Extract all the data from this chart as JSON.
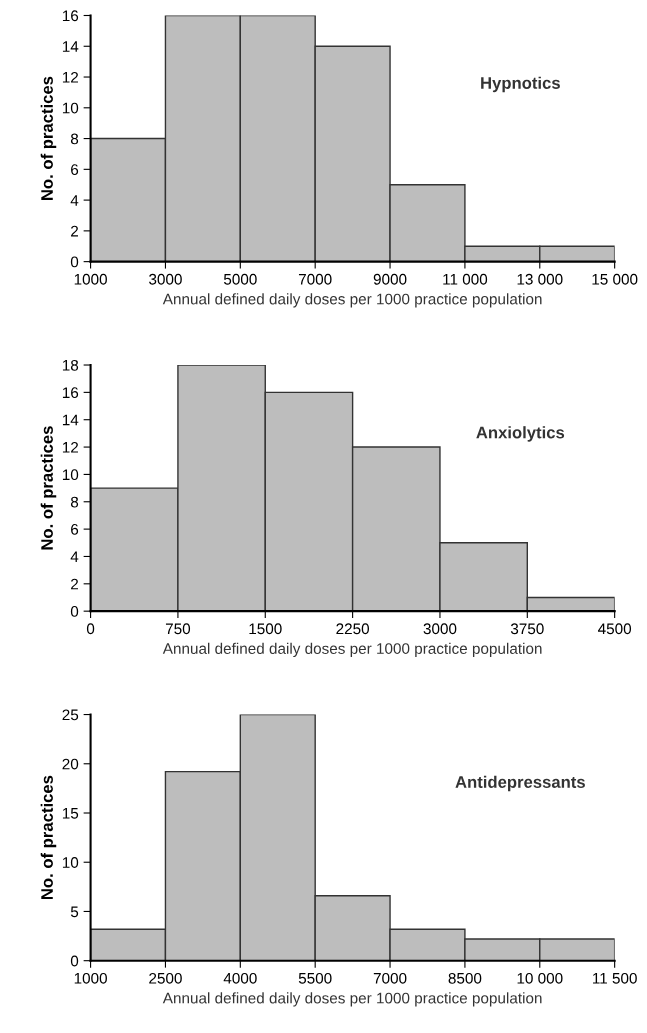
{
  "chart_data": [
    {
      "type": "histogram",
      "title": "Hypnotics",
      "xlabel": "Annual defined daily doses per 1000 practice population",
      "ylabel": "No. of practices",
      "color": "#bdbdbd",
      "bins": [
        1000,
        3000,
        5000,
        7000,
        9000,
        11000,
        13000,
        15000
      ],
      "values": [
        8,
        16,
        16,
        14,
        5,
        1,
        1
      ],
      "xlim": [
        1000,
        15000
      ],
      "xticks": [
        1000,
        3000,
        5000,
        7000,
        9000,
        {
          "value": 11000,
          "label": "11 000"
        },
        {
          "value": 13000,
          "label": "13 000"
        },
        {
          "value": 15000,
          "label": "15 000"
        }
      ],
      "ylim": [
        0,
        16
      ],
      "yticks": [
        0,
        2,
        4,
        6,
        8,
        10,
        12,
        14,
        16
      ],
      "grid": false,
      "legend": false
    },
    {
      "type": "histogram",
      "title": "Anxiolytics",
      "xlabel": "Annual defined daily doses per 1000 practice population",
      "ylabel": "No. of practices",
      "color": "#bdbdbd",
      "bins": [
        0,
        750,
        1500,
        2250,
        3000,
        3750,
        4500
      ],
      "values": [
        9,
        18,
        16,
        12,
        5,
        1
      ],
      "xlim": [
        0,
        4500
      ],
      "xticks": [
        0,
        750,
        1500,
        2250,
        3000,
        3750,
        4500
      ],
      "ylim": [
        0,
        18
      ],
      "yticks": [
        0,
        2,
        4,
        6,
        8,
        10,
        12,
        14,
        16,
        18
      ],
      "grid": false,
      "legend": false
    },
    {
      "type": "histogram",
      "title": "Antidepressants",
      "xlabel": "Annual defined daily doses per 1000 practice population",
      "ylabel": "No. of practices",
      "color": "#bdbdbd",
      "bins": [
        1000,
        2500,
        4000,
        5500,
        7000,
        8500,
        10000,
        11500
      ],
      "values": [
        3.2,
        19.2,
        25,
        6.6,
        3.2,
        2.2,
        2.2
      ],
      "xlim": [
        1000,
        11500
      ],
      "xticks": [
        1000,
        2500,
        4000,
        5500,
        7000,
        8500,
        {
          "value": 10000,
          "label": "10 000"
        },
        {
          "value": 11500,
          "label": "11 500"
        }
      ],
      "ylim": [
        0,
        25
      ],
      "yticks": [
        0,
        5,
        10,
        15,
        20,
        25
      ],
      "grid": false,
      "legend": false
    }
  ]
}
